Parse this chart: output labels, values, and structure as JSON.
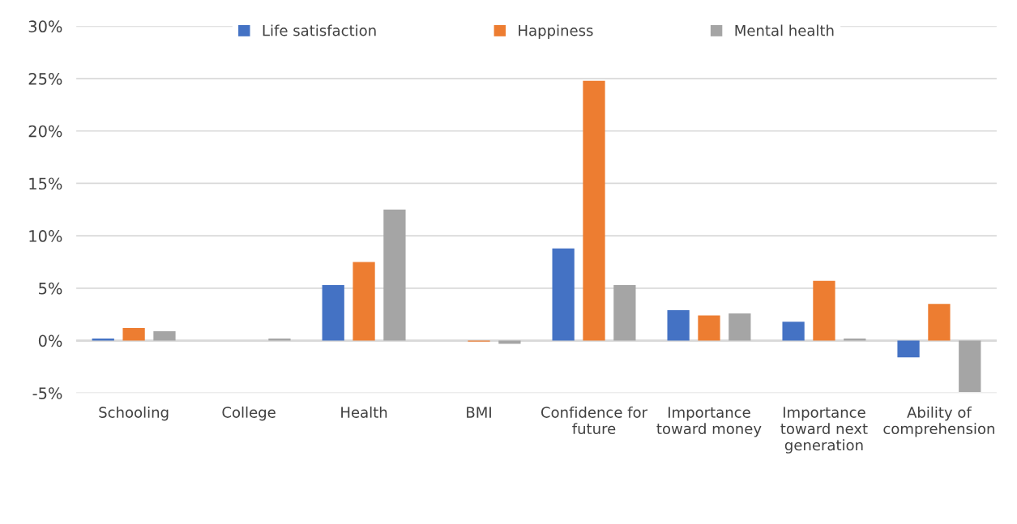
{
  "chart_data": {
    "type": "bar",
    "categories": [
      "Schooling",
      "College",
      "Health",
      "BMI",
      "Confidence for\nfuture",
      "Importance\ntoward money",
      "Importance\ntoward next\ngeneration",
      "Ability of\ncomprehension"
    ],
    "series": [
      {
        "name": "Life satisfaction",
        "color": "#4472c4",
        "values": [
          0.2,
          0,
          5.3,
          0,
          8.8,
          2.9,
          1.8,
          -1.6
        ]
      },
      {
        "name": "Happiness",
        "color": "#ed7d31",
        "values": [
          1.2,
          0,
          7.5,
          -0.1,
          24.8,
          2.4,
          5.7,
          3.5
        ]
      },
      {
        "name": "Mental health",
        "color": "#a5a5a5",
        "values": [
          0.9,
          0.2,
          12.5,
          -0.3,
          5.3,
          2.6,
          0.2,
          -4.9
        ]
      }
    ],
    "ylim": [
      -5,
      30
    ],
    "yticks": [
      {
        "value": -5,
        "label": "-5%"
      },
      {
        "value": 0,
        "label": "0%"
      },
      {
        "value": 5,
        "label": "5%"
      },
      {
        "value": 10,
        "label": "10%"
      },
      {
        "value": 15,
        "label": "15%"
      },
      {
        "value": 20,
        "label": "20%"
      },
      {
        "value": 25,
        "label": "25%"
      },
      {
        "value": 30,
        "label": "30%"
      }
    ],
    "grid": "y",
    "legend": "top"
  }
}
